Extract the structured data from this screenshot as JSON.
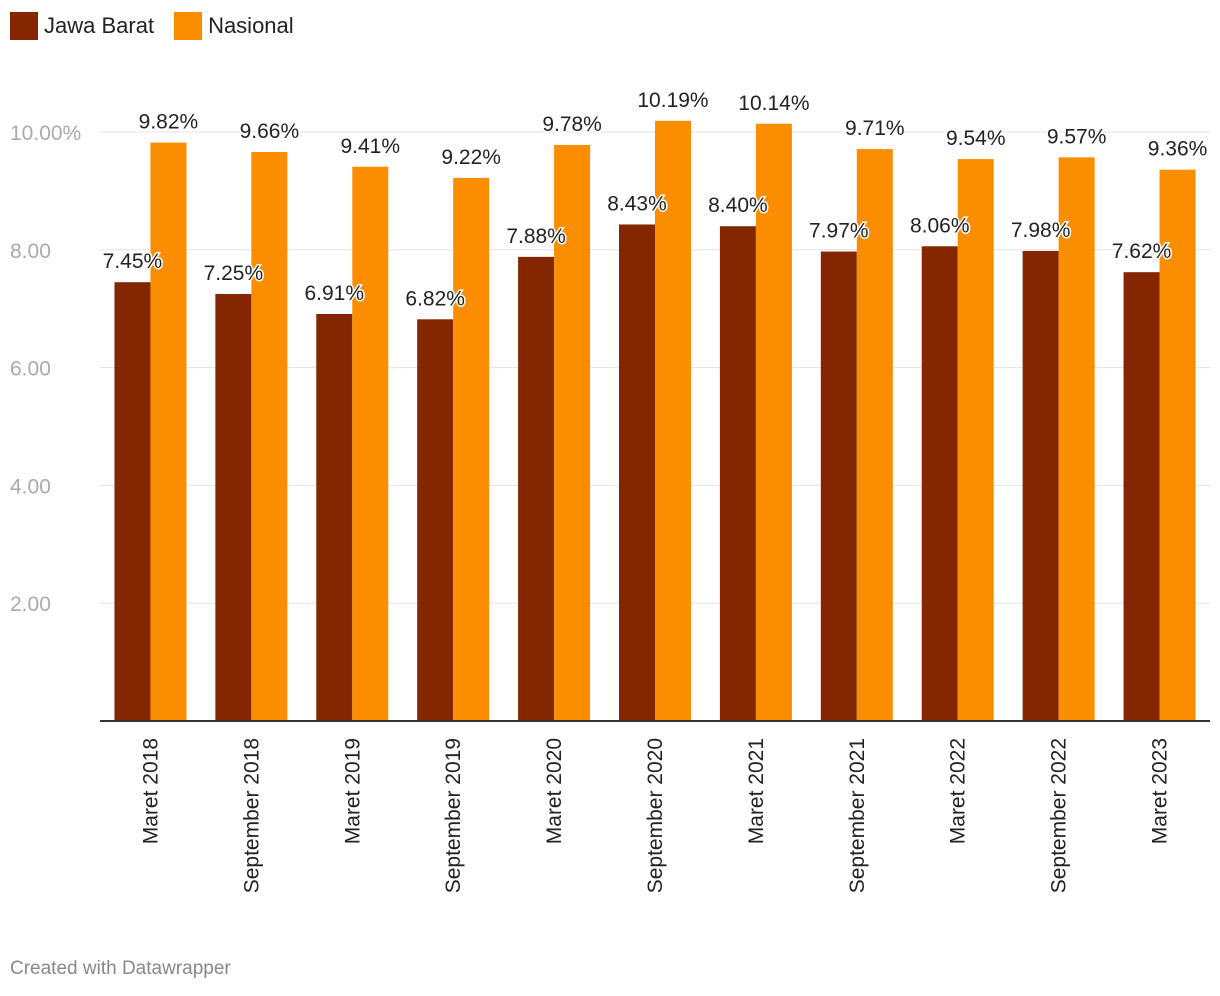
{
  "legend": [
    {
      "name": "Jawa Barat",
      "color": "#842700"
    },
    {
      "name": "Nasional",
      "color": "#fb8d00"
    }
  ],
  "chart_data": {
    "type": "bar",
    "categories": [
      "Maret 2018",
      "September 2018",
      "Maret 2019",
      "September 2019",
      "Maret 2020",
      "September 2020",
      "Maret 2021",
      "September 2021",
      "Maret 2022",
      "September 2022",
      "Maret 2023"
    ],
    "series": [
      {
        "name": "Jawa Barat",
        "values": [
          7.45,
          7.25,
          6.91,
          6.82,
          7.88,
          8.43,
          8.4,
          7.97,
          8.06,
          7.98,
          7.62
        ],
        "labels": [
          "7.45%",
          "7.25%",
          "6.91%",
          "6.82%",
          "7.88%",
          "8.43%",
          "8.40%",
          "7.97%",
          "8.06%",
          "7.98%",
          "7.62%"
        ]
      },
      {
        "name": "Nasional",
        "values": [
          9.82,
          9.66,
          9.41,
          9.22,
          9.78,
          10.19,
          10.14,
          9.71,
          9.54,
          9.57,
          9.36
        ],
        "labels": [
          "9.82%",
          "9.66%",
          "9.41%",
          "9.22%",
          "9.78%",
          "10.19%",
          "10.14%",
          "9.71%",
          "9.54%",
          "9.57%",
          "9.36%"
        ]
      }
    ],
    "yticks": [
      2,
      4,
      6,
      8,
      10
    ],
    "ytick_labels": [
      "2.00",
      "4.00",
      "6.00",
      "8.00",
      "10.00%"
    ],
    "ylim": [
      0,
      11
    ],
    "grid": true,
    "legend_position": "top-left"
  },
  "footer": "Created with Datawrapper"
}
